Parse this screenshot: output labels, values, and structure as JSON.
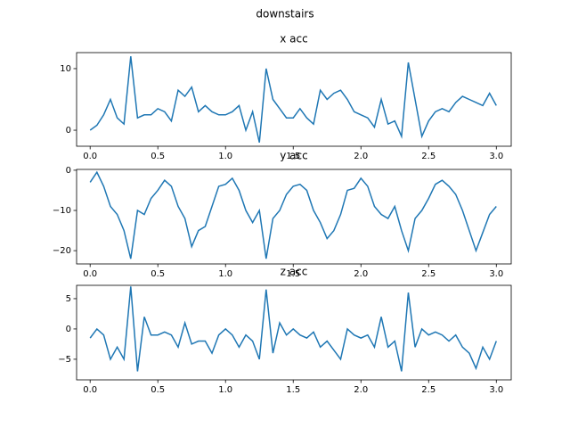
{
  "figure_title": "downstairs",
  "chart_data": [
    {
      "type": "line",
      "title": "x acc",
      "color": "#1f77b4",
      "x": [
        0,
        0.05,
        0.1,
        0.15,
        0.2,
        0.25,
        0.3,
        0.35,
        0.4,
        0.45,
        0.5,
        0.55,
        0.6,
        0.65,
        0.7,
        0.75,
        0.8,
        0.85,
        0.9,
        0.95,
        1.0,
        1.05,
        1.1,
        1.15,
        1.2,
        1.25,
        1.3,
        1.35,
        1.4,
        1.45,
        1.5,
        1.55,
        1.6,
        1.65,
        1.7,
        1.75,
        1.8,
        1.85,
        1.9,
        1.95,
        2.0,
        2.05,
        2.1,
        2.15,
        2.2,
        2.25,
        2.3,
        2.35,
        2.4,
        2.45,
        2.5,
        2.55,
        2.6,
        2.65,
        2.7,
        2.75,
        2.8,
        2.85,
        2.9,
        2.95,
        3.0
      ],
      "values": [
        0,
        0.8,
        2.5,
        5,
        2,
        1,
        12,
        2,
        2.5,
        2.5,
        3.5,
        3,
        1.5,
        6.5,
        5.5,
        7,
        3,
        4,
        3,
        2.5,
        2.5,
        3,
        4,
        0,
        3,
        -2,
        10,
        5,
        3.5,
        2,
        2,
        3.5,
        2,
        1,
        6.5,
        5,
        6,
        6.5,
        5,
        3,
        2.5,
        2,
        0.5,
        5,
        1,
        1.5,
        -1,
        11,
        5,
        -1,
        1.5,
        3,
        3.5,
        3,
        4.5,
        5.5,
        5,
        4.5,
        4,
        6,
        4
      ],
      "xlim": [
        -0.1,
        3.11
      ],
      "ylim": [
        -2.6,
        12.6
      ],
      "xticks": [
        {
          "value": 0,
          "label": "0.0"
        },
        0.5,
        {
          "value": 1,
          "label": "1.0"
        },
        1.5,
        {
          "value": 2,
          "label": "2.0"
        },
        2.5,
        {
          "value": 3,
          "label": "3.0"
        }
      ],
      "yticks": [
        0,
        10
      ]
    },
    {
      "type": "line",
      "title": "y acc",
      "color": "#1f77b4",
      "x": [
        0,
        0.05,
        0.1,
        0.15,
        0.2,
        0.25,
        0.3,
        0.35,
        0.4,
        0.45,
        0.5,
        0.55,
        0.6,
        0.65,
        0.7,
        0.75,
        0.8,
        0.85,
        0.9,
        0.95,
        1.0,
        1.05,
        1.1,
        1.15,
        1.2,
        1.25,
        1.3,
        1.35,
        1.4,
        1.45,
        1.5,
        1.55,
        1.6,
        1.65,
        1.7,
        1.75,
        1.8,
        1.85,
        1.9,
        1.95,
        2.0,
        2.05,
        2.1,
        2.15,
        2.2,
        2.25,
        2.3,
        2.35,
        2.4,
        2.45,
        2.5,
        2.55,
        2.6,
        2.65,
        2.7,
        2.75,
        2.8,
        2.85,
        2.9,
        2.95,
        3.0
      ],
      "values": [
        -3,
        -0.5,
        -4,
        -9,
        -11,
        -15,
        -22,
        -10,
        -11,
        -7,
        -5,
        -2.5,
        -4,
        -9,
        -12,
        -19,
        -15,
        -14,
        -9,
        -4,
        -3.5,
        -2,
        -5,
        -10,
        -13,
        -10,
        -22,
        -12,
        -10,
        -6,
        -4,
        -3.5,
        -5,
        -10,
        -13,
        -17,
        -15,
        -11,
        -5,
        -4.5,
        -2,
        -4,
        -9,
        -11,
        -12,
        -9,
        -15,
        -20,
        -12,
        -10,
        -7,
        -3.5,
        -2.5,
        -4,
        -6,
        -10,
        -15,
        -20,
        -15.5,
        -11,
        -9
      ],
      "xlim": [
        -0.1,
        3.11
      ],
      "ylim": [
        -23.3,
        0.2
      ],
      "xticks": [
        {
          "value": 0,
          "label": "0.0"
        },
        0.5,
        {
          "value": 1,
          "label": "1.0"
        },
        1.5,
        {
          "value": 2,
          "label": "2.0"
        },
        2.5,
        {
          "value": 3,
          "label": "3.0"
        }
      ],
      "yticks": [
        0,
        {
          "value": -10,
          "label": "−10"
        },
        {
          "value": -20,
          "label": "−20"
        }
      ]
    },
    {
      "type": "line",
      "title": "z acc",
      "color": "#1f77b4",
      "x": [
        0,
        0.05,
        0.1,
        0.15,
        0.2,
        0.25,
        0.3,
        0.35,
        0.4,
        0.45,
        0.5,
        0.55,
        0.6,
        0.65,
        0.7,
        0.75,
        0.8,
        0.85,
        0.9,
        0.95,
        1.0,
        1.05,
        1.1,
        1.15,
        1.2,
        1.25,
        1.3,
        1.35,
        1.4,
        1.45,
        1.5,
        1.55,
        1.6,
        1.65,
        1.7,
        1.75,
        1.8,
        1.85,
        1.9,
        1.95,
        2.0,
        2.05,
        2.1,
        2.15,
        2.2,
        2.25,
        2.3,
        2.35,
        2.4,
        2.45,
        2.5,
        2.55,
        2.6,
        2.65,
        2.7,
        2.75,
        2.8,
        2.85,
        2.9,
        2.95,
        3.0
      ],
      "values": [
        -1.5,
        0,
        -1,
        -5,
        -3,
        -5,
        7,
        -7,
        2,
        -1,
        -1,
        -0.5,
        -1,
        -3,
        1,
        -2.5,
        -2,
        -2,
        -4,
        -1,
        0,
        -1,
        -3,
        -1,
        -2,
        -5,
        6.5,
        -4,
        1,
        -1,
        0,
        -1,
        -1.5,
        -0.5,
        -3,
        -2,
        -3.5,
        -5,
        0,
        -1,
        -1.5,
        -1,
        -3,
        2,
        -3,
        -2,
        -7,
        6,
        -3,
        0,
        -1,
        -0.5,
        -1,
        -2,
        -1,
        -3,
        -4,
        -6.5,
        -3,
        -5,
        -2
      ],
      "xlim": [
        -0.1,
        3.11
      ],
      "ylim": [
        -8.4,
        7.2
      ],
      "xticks": [
        {
          "value": 0,
          "label": "0.0"
        },
        0.5,
        {
          "value": 1,
          "label": "1.0"
        },
        1.5,
        {
          "value": 2,
          "label": "2.0"
        },
        2.5,
        {
          "value": 3,
          "label": "3.0"
        }
      ],
      "yticks": [
        {
          "value": -5,
          "label": "−5"
        },
        0,
        5
      ]
    }
  ]
}
